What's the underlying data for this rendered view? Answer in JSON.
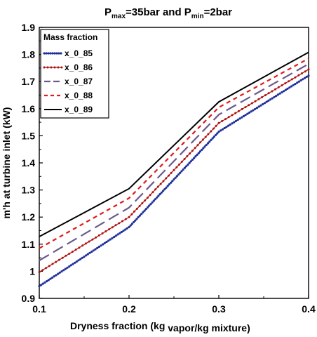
{
  "chart_data": {
    "type": "line",
    "title": {
      "p1": "P",
      "s1": "max",
      "p2": "=35bar and P",
      "s2": "min",
      "p3": "=2bar"
    },
    "xlabel": {
      "main": "Dryness fraction (kg ",
      "sub": "vapor/kg mixture)"
    },
    "ylabel": "m'h at turbine inlet (kW)",
    "xlim": [
      0.1,
      0.4
    ],
    "ylim": [
      0.9,
      1.9
    ],
    "x_tick_labels": [
      "0.1",
      "0.2",
      "0.3",
      "0.4"
    ],
    "y_tick_labels": [
      "0.9",
      "1",
      "1.1",
      "1.2",
      "1.3",
      "1.4",
      "1.5",
      "1.6",
      "1.7",
      "1.8",
      "1.9"
    ],
    "grid": false,
    "legend_position": "top-left",
    "legend_title": "Mass fraction",
    "x": [
      0.1,
      0.2,
      0.3,
      0.4
    ],
    "series": [
      {
        "name": "x_0_85",
        "values": [
          0.945,
          1.163,
          1.515,
          1.722
        ],
        "color": "#1f2f9a",
        "style": "dotted-markers"
      },
      {
        "name": "x_0_86",
        "values": [
          0.997,
          1.2,
          1.547,
          1.745
        ],
        "color": "#b01010",
        "style": "line-markers"
      },
      {
        "name": "x_0_87",
        "values": [
          1.04,
          1.235,
          1.578,
          1.765
        ],
        "color": "#6a5a8a",
        "style": "long-dash"
      },
      {
        "name": "x_0_88",
        "values": [
          1.085,
          1.27,
          1.605,
          1.785
        ],
        "color": "#e01818",
        "style": "short-dash"
      },
      {
        "name": "x_0_89",
        "values": [
          1.128,
          1.305,
          1.625,
          1.808
        ],
        "color": "#000000",
        "style": "solid"
      }
    ]
  }
}
